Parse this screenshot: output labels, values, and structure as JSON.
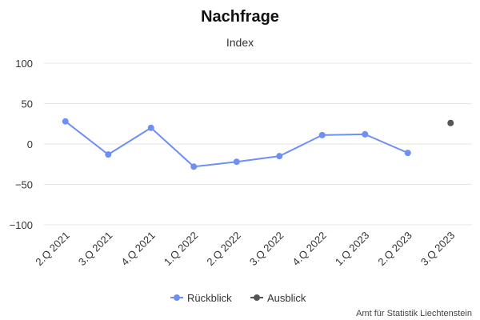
{
  "chart_data": {
    "type": "line",
    "title": "Nachfrage",
    "subtitle": "Index",
    "categories": [
      "2.Q 2021",
      "3.Q 2021",
      "4.Q 2021",
      "1.Q 2022",
      "2.Q 2022",
      "3.Q 2022",
      "4.Q 2022",
      "1.Q 2023",
      "2.Q 2023",
      "3.Q 2023"
    ],
    "series": [
      {
        "name": "Rückblick",
        "color": "#6e8ff3",
        "values": [
          28,
          -13,
          20,
          -28,
          -22,
          -15,
          11,
          12,
          -11,
          null
        ]
      },
      {
        "name": "Ausblick",
        "color": "#555555",
        "values": [
          null,
          null,
          null,
          null,
          null,
          null,
          null,
          null,
          null,
          26
        ]
      }
    ],
    "ylim": [
      -100,
      100
    ],
    "yticks": [
      100,
      50,
      0,
      -50,
      -100
    ],
    "ytick_labels": [
      "100",
      "50",
      "0",
      "−50",
      "−100"
    ],
    "grid": true,
    "legend": "bottom-center"
  },
  "credit": "Amt für Statistik Liechtenstein"
}
